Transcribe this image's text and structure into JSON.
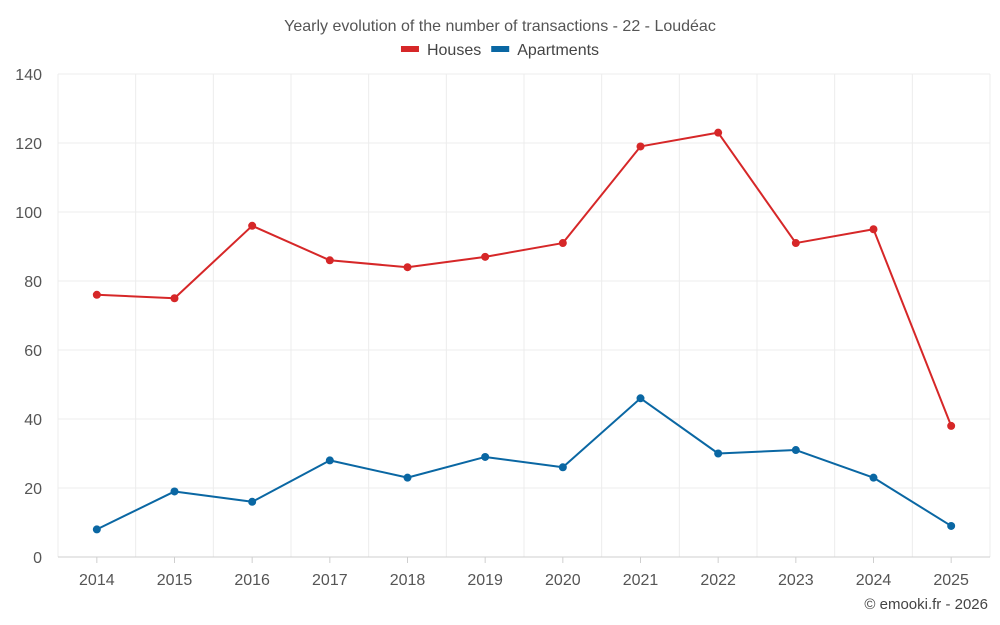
{
  "chart_data": {
    "type": "line",
    "title": "Yearly evolution of the number of transactions - 22 - Loudéac",
    "categories": [
      "2014",
      "2015",
      "2016",
      "2017",
      "2018",
      "2019",
      "2020",
      "2021",
      "2022",
      "2023",
      "2024",
      "2025"
    ],
    "series": [
      {
        "name": "Houses",
        "color": "#d62728",
        "values": [
          76,
          75,
          96,
          86,
          84,
          87,
          91,
          119,
          123,
          91,
          95,
          38
        ]
      },
      {
        "name": "Apartments",
        "color": "#0a67a3",
        "values": [
          8,
          19,
          16,
          28,
          23,
          29,
          26,
          46,
          30,
          31,
          23,
          9
        ]
      }
    ],
    "ylim": [
      0,
      140
    ],
    "yticks": [
      0,
      20,
      40,
      60,
      80,
      100,
      120,
      140
    ],
    "xlabel": "",
    "ylabel": "",
    "legend_position": "top-center",
    "grid": true
  },
  "credit": "© emooki.fr - 2026"
}
